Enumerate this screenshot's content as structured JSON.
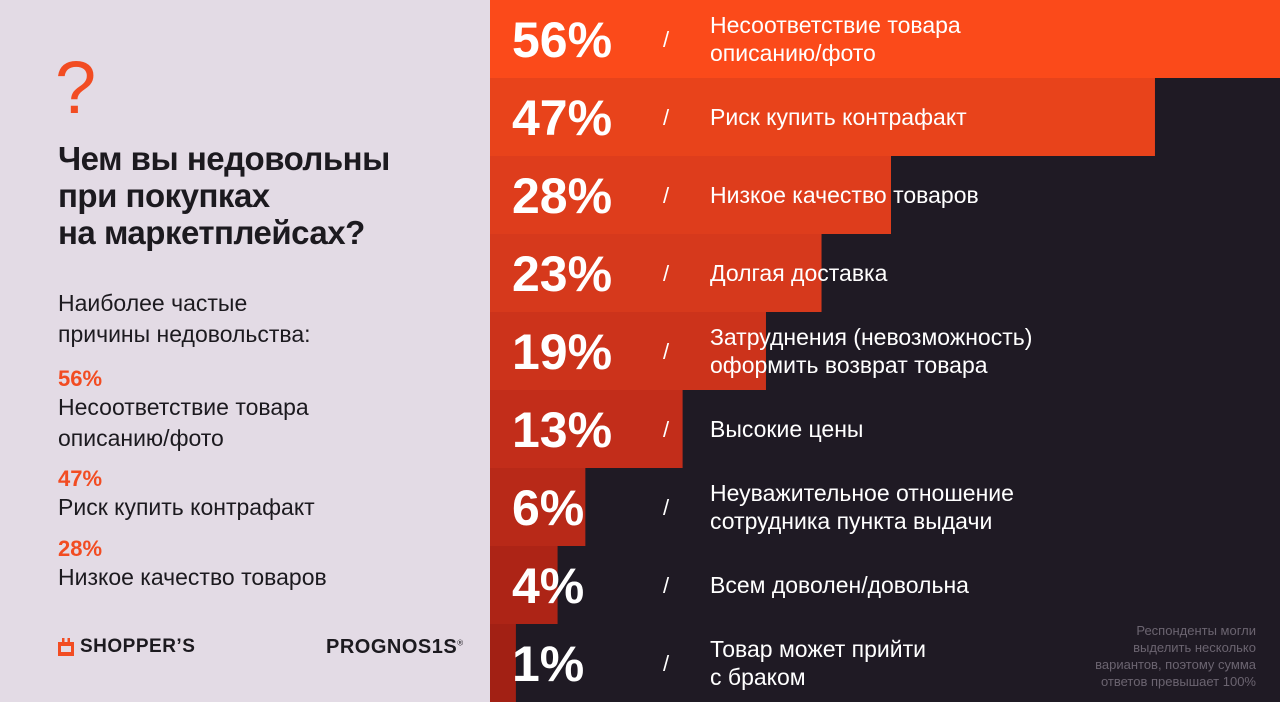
{
  "question": {
    "mark": "?",
    "lines": [
      "Чем вы недовольны",
      "при покупках",
      "на маркетплейсах?"
    ]
  },
  "subtitle": {
    "lines": [
      "Наиболее частые",
      "причины недовольства:"
    ]
  },
  "highlights": [
    {
      "pct": "56%",
      "lines": [
        "Несоответствие товара",
        "описанию/фото"
      ]
    },
    {
      "pct": "47%",
      "lines": [
        "Риск купить контрафакт"
      ]
    },
    {
      "pct": "28%",
      "lines": [
        "Низкое качество товаров"
      ]
    }
  ],
  "logos": {
    "shoppers": "SHOPPER’S",
    "prognosis": "PROGNOS1S",
    "prognosis_mark": "®"
  },
  "footnote": {
    "lines": [
      "Респонденты могли",
      "выделить несколько",
      "вариантов, поэтому сумма",
      "ответов превышает 100%"
    ]
  },
  "colors": {
    "accent": "#f24c22",
    "bars": [
      "#fb4a1a",
      "#e8431b",
      "#de3d1c",
      "#d6391c",
      "#cc331b",
      "#c22d1a",
      "#b82918",
      "#ad2416",
      "#a22014"
    ],
    "dark_bg": "#1f1a24",
    "light_bg": "#e3dbe5"
  },
  "chart_data": {
    "type": "bar",
    "orientation": "horizontal",
    "categories": [
      [
        "Несоответствие товара",
        "описанию/фото"
      ],
      [
        "Риск купить контрафакт"
      ],
      [
        "Низкое качество товаров"
      ],
      [
        "Долгая доставка"
      ],
      [
        "Затруднения (невозможность)",
        "оформить возврат товара"
      ],
      [
        "Высокие цены"
      ],
      [
        "Неуважительное отношение",
        "сотрудника пункта выдачи"
      ],
      [
        "Всем доволен/довольна"
      ],
      [
        "Товар может прийти",
        "с браком"
      ]
    ],
    "values": [
      56,
      47,
      28,
      23,
      19,
      13,
      6,
      4,
      1
    ],
    "value_labels": [
      "56%",
      "47%",
      "28%",
      "23%",
      "19%",
      "13%",
      "6%",
      "4%",
      "1%"
    ],
    "separator": "/",
    "xlim": [
      0,
      56
    ],
    "grid": false,
    "legend": false
  }
}
